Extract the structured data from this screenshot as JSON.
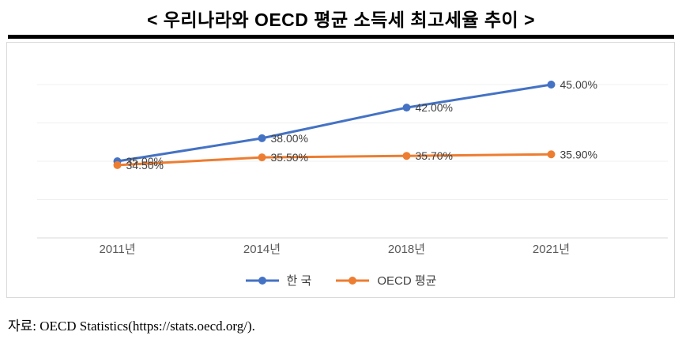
{
  "source": "자료: OECD Statistics(https://stats.oecd.org/).",
  "colors": {
    "korea_line": "#4472C4",
    "oecd_line": "#ED7D31",
    "axis": "#D9D9D9",
    "gridline": "#F0F0F0",
    "data_label": "#404040",
    "tick_label": "#595959",
    "title_rule": "#000000"
  },
  "chart_data": {
    "type": "line",
    "title": "< 우리나라와 OECD 평균 소득세 최고세율 추이 >",
    "categories": [
      "2011년",
      "2014년",
      "2018년",
      "2021년"
    ],
    "series": [
      {
        "id": "korea",
        "name": "한 국",
        "color": "#4472C4",
        "values": [
          35.0,
          38.0,
          42.0,
          45.0
        ],
        "labels": [
          "35.00%",
          "38.00%",
          "42.00%",
          "45.00%"
        ]
      },
      {
        "id": "oecd",
        "name": "OECD 평균",
        "color": "#ED7D31",
        "values": [
          34.5,
          35.5,
          35.7,
          35.9
        ],
        "labels": [
          "34.50%",
          "35.50%",
          "35.70%",
          "35.90%"
        ]
      }
    ],
    "xlabel": "",
    "ylabel": "",
    "unit": "%",
    "ylim": [
      25,
      48
    ],
    "gridlines": [
      30,
      35,
      40,
      45
    ],
    "grid": "faint horizontal, y-axis hidden",
    "legend_position": "bottom",
    "data_labels": "shown right of each marker; 2011 labels of both series overlap"
  }
}
